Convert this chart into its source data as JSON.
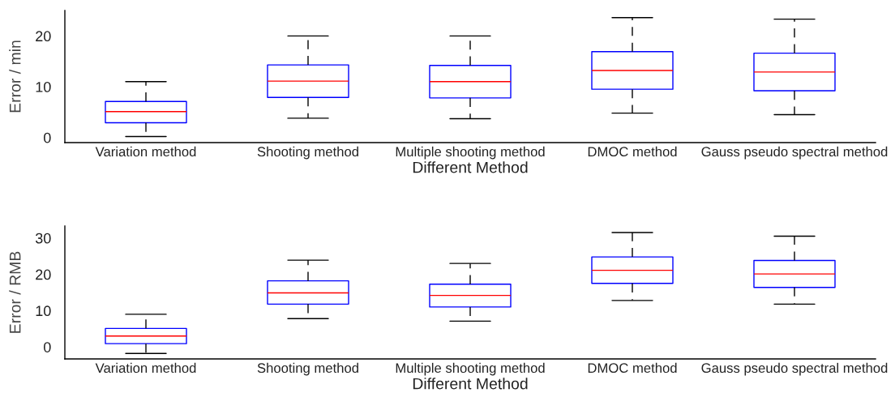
{
  "chart_data": [
    {
      "type": "box",
      "xlabel": "Different Method",
      "ylabel": "Error / min",
      "categories": [
        "Variation method",
        "Shooting method",
        "Multiple shooting method",
        "DMOC method",
        "Gauss pseudo spectral method"
      ],
      "ylim": [
        -1,
        25
      ],
      "yticks": [
        0,
        10,
        20
      ],
      "grid": false,
      "legend": false,
      "series": [
        {
          "color": "#0000ff",
          "boxes": [
            {
              "low": 0.2,
              "q1": 2.9,
              "median": 5.1,
              "q3": 7.1,
              "high": 11
            },
            {
              "low": 3.8,
              "q1": 7.9,
              "median": 11.1,
              "q3": 14.3,
              "high": 20
            },
            {
              "low": 3.7,
              "q1": 7.8,
              "median": 11,
              "q3": 14.2,
              "high": 20
            },
            {
              "low": 4.8,
              "q1": 9.5,
              "median": 13.2,
              "q3": 16.9,
              "high": 23.6
            },
            {
              "low": 4.5,
              "q1": 9.2,
              "median": 12.9,
              "q3": 16.6,
              "high": 23.3
            }
          ]
        }
      ]
    },
    {
      "type": "box",
      "xlabel": "Different Method",
      "ylabel": "Error / RMB",
      "categories": [
        "Variation method",
        "Shooting method",
        "Multiple shooting method",
        "DMOC method",
        "Gauss pseudo spectral method"
      ],
      "ylim": [
        -3.3,
        33.3
      ],
      "yticks": [
        0,
        10,
        20,
        30
      ],
      "grid": false,
      "legend": false,
      "series": [
        {
          "color": "#0000ff",
          "boxes": [
            {
              "low": -1.8,
              "q1": 0.9,
              "median": 3,
              "q3": 5.1,
              "high": 9
            },
            {
              "low": 7.8,
              "q1": 11.8,
              "median": 14.9,
              "q3": 18.2,
              "high": 23.9
            },
            {
              "low": 7.1,
              "q1": 11,
              "median": 14.2,
              "q3": 17.3,
              "high": 23
            },
            {
              "low": 12.8,
              "q1": 17.5,
              "median": 21.1,
              "q3": 24.8,
              "high": 31.5
            },
            {
              "low": 11.8,
              "q1": 16.4,
              "median": 20.1,
              "q3": 23.8,
              "high": 30.5
            }
          ]
        }
      ]
    }
  ]
}
